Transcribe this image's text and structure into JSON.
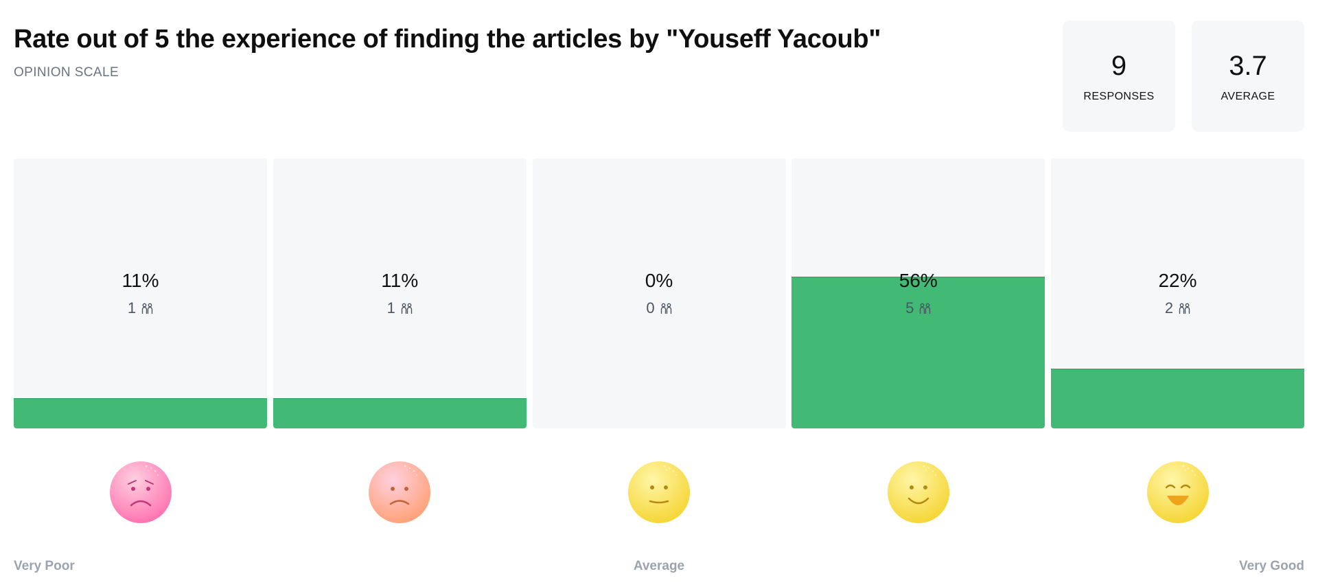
{
  "header": {
    "title": "Rate out of 5 the experience of finding the articles by \"Youseff Yacoub\"",
    "question_type": "OPINION SCALE"
  },
  "stats": {
    "responses_value": "9",
    "responses_label": "RESPONSES",
    "average_value": "3.7",
    "average_label": "AVERAGE"
  },
  "chart_data": {
    "type": "bar",
    "categories": [
      "1",
      "2",
      "3",
      "4",
      "5"
    ],
    "values": [
      11,
      11,
      0,
      56,
      22
    ],
    "counts": [
      1,
      1,
      0,
      5,
      2
    ],
    "value_labels": [
      "11%",
      "11%",
      "0%",
      "56%",
      "22%"
    ],
    "count_labels": [
      "1",
      "1",
      "0",
      "5",
      "2"
    ],
    "ylim": [
      0,
      100
    ],
    "bar_color": "#42b974",
    "track_color": "#f6f7f9"
  },
  "faces": [
    {
      "icon": "very-sad-face-icon",
      "color": "#ff6fae"
    },
    {
      "icon": "sad-face-icon",
      "color": "#ff9f73"
    },
    {
      "icon": "neutral-face-icon",
      "color": "#f5d431"
    },
    {
      "icon": "smile-face-icon",
      "color": "#f5d431"
    },
    {
      "icon": "laughing-face-icon",
      "color": "#f5d431"
    }
  ],
  "scale_labels": {
    "left": "Very Poor",
    "middle": "Average",
    "right": "Very Good"
  }
}
